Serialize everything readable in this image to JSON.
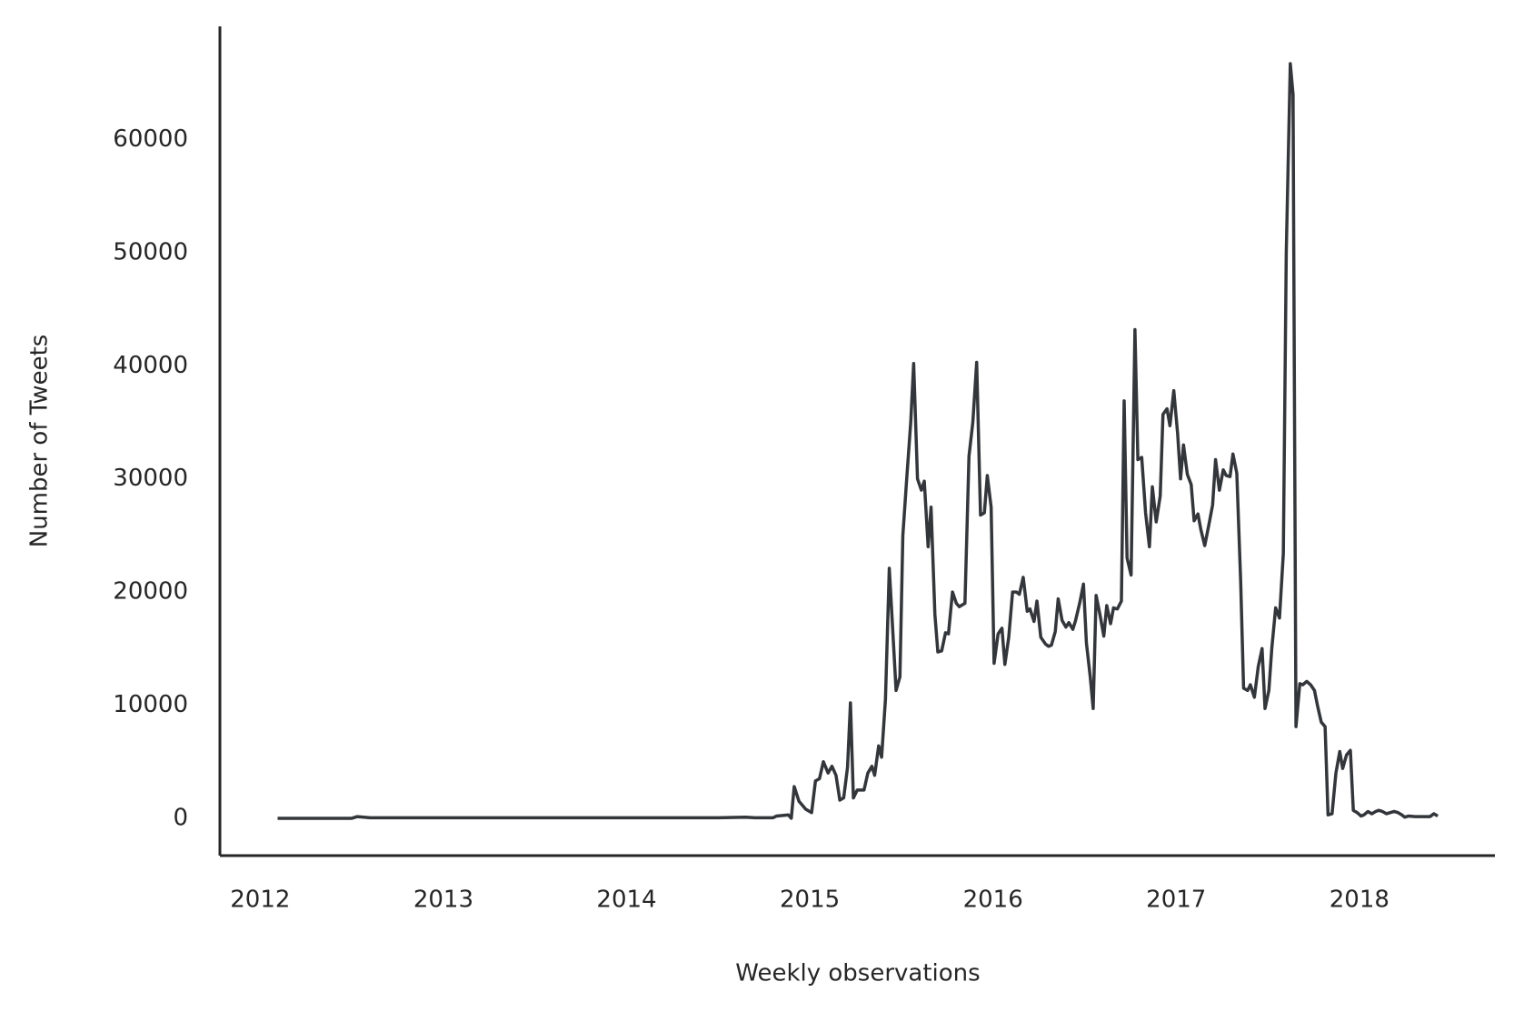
{
  "chart_data": {
    "type": "line",
    "x_label": "Weekly observations",
    "y_label": "Number of Tweets",
    "color": "#33363a",
    "xlim": [
      2011.78,
      2018.74
    ],
    "xticks": [
      2012,
      2013,
      2014,
      2015,
      2016,
      2017,
      2018
    ],
    "ylim": [
      -3300,
      70000
    ],
    "yticks": [
      0,
      10000,
      20000,
      30000,
      40000,
      50000,
      60000
    ],
    "x": [
      2012.095,
      2012.5,
      2012.53,
      2012.6,
      2013.5,
      2014.5,
      2014.65,
      2014.7,
      2014.8,
      2014.819,
      2014.883,
      2014.899,
      2014.915,
      2014.941,
      2014.978,
      2015.01,
      2015.031,
      2015.053,
      2015.074,
      2015.1,
      2015.121,
      2015.143,
      2015.164,
      2015.185,
      2015.206,
      2015.222,
      2015.238,
      2015.259,
      2015.296,
      2015.317,
      2015.339,
      2015.354,
      2015.376,
      2015.392,
      2015.413,
      2015.434,
      2015.455,
      2015.471,
      2015.492,
      2015.508,
      2015.529,
      2015.551,
      2015.567,
      2015.588,
      2015.609,
      2015.625,
      2015.646,
      2015.662,
      2015.683,
      2015.699,
      2015.72,
      2015.741,
      2015.757,
      2015.779,
      2015.8,
      2015.816,
      2015.847,
      2015.869,
      2015.89,
      2015.911,
      2015.932,
      2015.953,
      2015.969,
      2015.99,
      2016.006,
      2016.028,
      2016.049,
      2016.065,
      2016.086,
      2016.107,
      2016.128,
      2016.144,
      2016.165,
      2016.187,
      2016.202,
      2016.224,
      2016.24,
      2016.261,
      2016.287,
      2016.303,
      2016.319,
      2016.34,
      2016.356,
      2016.377,
      2016.398,
      2016.414,
      2016.436,
      2016.451,
      2016.473,
      2016.494,
      2016.51,
      2016.531,
      2016.547,
      2016.563,
      2016.584,
      2016.605,
      2016.621,
      2016.642,
      2016.658,
      2016.679,
      2016.701,
      2016.716,
      2016.732,
      2016.754,
      2016.775,
      2016.791,
      2016.812,
      2016.833,
      2016.854,
      2016.87,
      2016.891,
      2016.913,
      2016.928,
      2016.95,
      2016.966,
      2016.987,
      2017.008,
      2017.024,
      2017.04,
      2017.061,
      2017.082,
      2017.098,
      2017.119,
      2017.135,
      2017.156,
      2017.178,
      2017.199,
      2017.215,
      2017.236,
      2017.257,
      2017.273,
      2017.294,
      2017.31,
      2017.331,
      2017.352,
      2017.368,
      2017.39,
      2017.405,
      2017.427,
      2017.448,
      2017.469,
      2017.485,
      2017.506,
      2017.522,
      2017.543,
      2017.564,
      2017.585,
      2017.601,
      2017.623,
      2017.638,
      2017.654,
      2017.675,
      2017.691,
      2017.713,
      2017.734,
      2017.755,
      2017.771,
      2017.792,
      2017.813,
      2017.829,
      2017.851,
      2017.872,
      2017.893,
      2017.909,
      2017.93,
      2017.951,
      2017.967,
      2017.988,
      2018.009,
      2018.025,
      2018.047,
      2018.068,
      2018.089,
      2018.105,
      2018.126,
      2018.148,
      2018.169,
      2018.19,
      2018.211,
      2018.232,
      2018.248,
      2018.269,
      2018.306,
      2018.349,
      2018.386,
      2018.407,
      2018.428
    ],
    "values": [
      0,
      0,
      150,
      50,
      50,
      50,
      100,
      50,
      50,
      200,
      300,
      0,
      2800,
      1500,
      800,
      500,
      3300,
      3500,
      5000,
      4000,
      4600,
      3800,
      1600,
      1800,
      4500,
      10200,
      1800,
      2500,
      2500,
      4000,
      4600,
      3800,
      6400,
      5400,
      10500,
      22100,
      16000,
      11300,
      12500,
      25000,
      30000,
      35000,
      40200,
      30000,
      29000,
      29800,
      24000,
      27500,
      18000,
      14700,
      14800,
      16400,
      16300,
      20000,
      19000,
      18700,
      19000,
      32000,
      35000,
      40300,
      26800,
      27000,
      30300,
      27500,
      13700,
      16300,
      16800,
      13600,
      16000,
      20000,
      20000,
      19800,
      21300,
      18300,
      18500,
      17400,
      19200,
      16000,
      15400,
      15200,
      15300,
      16500,
      19400,
      17500,
      16900,
      17300,
      16700,
      17500,
      19000,
      20700,
      15500,
      12500,
      9700,
      19700,
      18000,
      16100,
      18800,
      17200,
      18600,
      18500,
      19200,
      36900,
      23000,
      21500,
      43200,
      31700,
      31900,
      27000,
      24000,
      29300,
      26200,
      28500,
      35700,
      36200,
      34700,
      37800,
      34000,
      30000,
      33000,
      30400,
      29500,
      26300,
      26900,
      25500,
      24100,
      25900,
      27700,
      31700,
      29000,
      30800,
      30300,
      30200,
      32200,
      30500,
      21000,
      11500,
      11300,
      11800,
      10700,
      13400,
      15000,
      9700,
      11300,
      15000,
      18600,
      17700,
      23400,
      50000,
      66700,
      64000,
      8100,
      11900,
      11800,
      12100,
      11800,
      11300,
      10000,
      8500,
      8100,
      300,
      400,
      4000,
      5900,
      4400,
      5600,
      6000,
      700,
      500,
      200,
      300,
      600,
      400,
      600,
      700,
      600,
      400,
      500,
      600,
      500,
      300,
      100,
      200,
      150,
      150,
      150,
      400,
      200
    ]
  }
}
